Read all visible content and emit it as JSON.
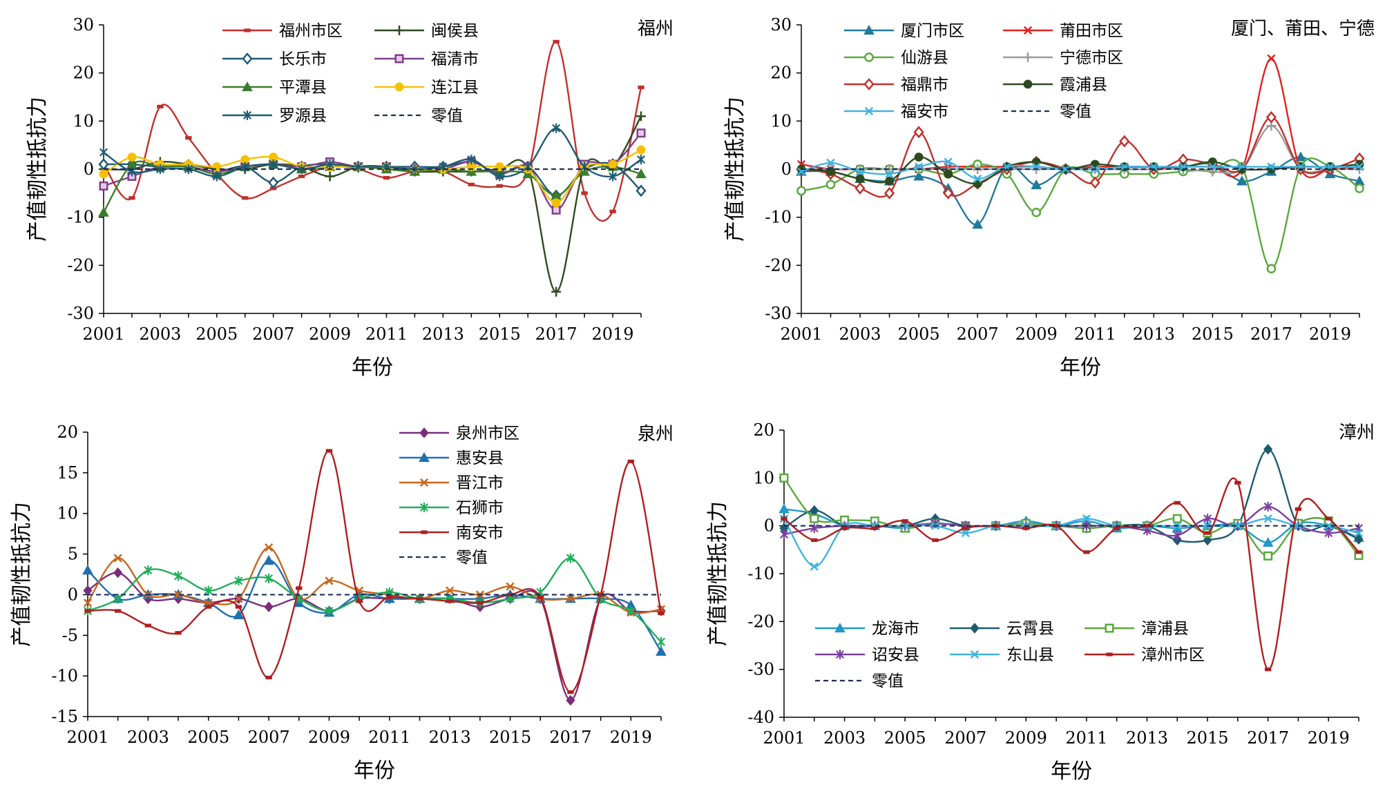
{
  "chart_data": [
    {
      "type": "line",
      "panel_label": "福州",
      "xlabel": "年份",
      "ylabel": "产值韧性抵抗力",
      "x": [
        2001,
        2002,
        2003,
        2004,
        2005,
        2006,
        2007,
        2008,
        2009,
        2010,
        2011,
        2012,
        2013,
        2014,
        2015,
        2016,
        2017,
        2018,
        2019,
        2020
      ],
      "x_ticks": [
        "2001",
        "2003",
        "2005",
        "2007",
        "2009",
        "2011",
        "2013",
        "2015",
        "2017",
        "2019"
      ],
      "ylim": [
        -30,
        30
      ],
      "y_ticks": [
        "30",
        "20",
        "10",
        "0",
        "-10",
        "-20",
        "-30"
      ],
      "legend_columns": 2,
      "series": [
        {
          "name": "福州市区",
          "color": "#c0302b",
          "marker": "dash",
          "values": [
            1.0,
            -6.0,
            13.0,
            6.5,
            -1.0,
            -6.0,
            -4.0,
            -1.5,
            0.5,
            0.0,
            -1.8,
            -0.5,
            -0.5,
            -3.2,
            -3.5,
            -0.5,
            26.5,
            -5.0,
            -8.8,
            17.0
          ]
        },
        {
          "name": "闽侯县",
          "color": "#2d4a1f",
          "marker": "plus",
          "values": [
            0.0,
            0.0,
            1.5,
            1.0,
            0.0,
            0.0,
            1.0,
            0.5,
            -1.5,
            0.5,
            0.5,
            -0.5,
            -0.5,
            -0.5,
            0.0,
            0.0,
            -25.5,
            0.5,
            0.5,
            11.0
          ]
        },
        {
          "name": "长乐市",
          "color": "#1f5a74",
          "marker": "diamond-open",
          "values": [
            1.0,
            1.0,
            0.5,
            0.5,
            -0.5,
            0.5,
            -2.8,
            0.5,
            1.0,
            0.5,
            0.5,
            0.5,
            0.5,
            1.5,
            -1.0,
            0.5,
            -5.5,
            0.0,
            1.0,
            -4.5
          ]
        },
        {
          "name": "福清市",
          "color": "#7f3f8a",
          "marker": "square-open",
          "values": [
            -3.5,
            -1.5,
            0.5,
            0.5,
            -0.5,
            0.5,
            1.0,
            0.5,
            1.5,
            0.5,
            0.5,
            0.0,
            0.0,
            1.5,
            -1.0,
            0.5,
            -8.5,
            1.0,
            1.0,
            7.5
          ]
        },
        {
          "name": "平潭县",
          "color": "#3c7d2c",
          "marker": "triangle",
          "values": [
            -9.0,
            1.0,
            0.5,
            0.5,
            -1.0,
            0.5,
            1.0,
            0.0,
            0.5,
            0.5,
            0.0,
            -0.5,
            0.0,
            -0.5,
            -0.5,
            -1.0,
            -5.5,
            -0.5,
            0.5,
            -1.0
          ]
        },
        {
          "name": "连江县",
          "color": "#f5c000",
          "marker": "circle",
          "values": [
            -1.0,
            2.5,
            1.0,
            1.0,
            0.5,
            2.0,
            2.5,
            0.5,
            0.5,
            0.5,
            0.5,
            0.0,
            0.0,
            0.5,
            0.5,
            0.0,
            -7.0,
            0.5,
            1.0,
            4.0
          ]
        },
        {
          "name": "罗源县",
          "color": "#1b5c73",
          "marker": "asterisk",
          "values": [
            3.5,
            -0.5,
            0.0,
            0.0,
            -1.5,
            0.5,
            1.0,
            0.0,
            1.0,
            0.5,
            0.5,
            0.0,
            0.5,
            2.0,
            -1.5,
            0.5,
            8.5,
            0.5,
            -1.5,
            2.0
          ]
        },
        {
          "name": "零值",
          "color": "#1a2d5a",
          "marker": "none",
          "dashed": true,
          "values": [
            0,
            0,
            0,
            0,
            0,
            0,
            0,
            0,
            0,
            0,
            0,
            0,
            0,
            0,
            0,
            0,
            0,
            0,
            0,
            0
          ]
        }
      ]
    },
    {
      "type": "line",
      "panel_label": "厦门、莆田、宁德",
      "xlabel": "年份",
      "ylabel": "产值韧性抵抗力",
      "x": [
        2001,
        2002,
        2003,
        2004,
        2005,
        2006,
        2007,
        2008,
        2009,
        2010,
        2011,
        2012,
        2013,
        2014,
        2015,
        2016,
        2017,
        2018,
        2019,
        2020
      ],
      "x_ticks": [
        "2001",
        "2003",
        "2005",
        "2007",
        "2009",
        "2011",
        "2013",
        "2015",
        "2017",
        "2019"
      ],
      "ylim": [
        -30,
        30
      ],
      "y_ticks": [
        "30",
        "20",
        "10",
        "0",
        "-10",
        "-20",
        "-30"
      ],
      "legend_columns": 2,
      "series": [
        {
          "name": "厦门市区",
          "color": "#1f7a9c",
          "marker": "triangle",
          "values": [
            -0.5,
            -0.5,
            -2.0,
            -2.5,
            -1.5,
            -4.0,
            -11.5,
            0.5,
            -3.3,
            0.0,
            0.0,
            0.0,
            0.0,
            0.5,
            1.0,
            -2.5,
            -0.5,
            2.5,
            -1.0,
            -2.5
          ]
        },
        {
          "name": "莆田市区",
          "color": "#e02020",
          "marker": "x",
          "values": [
            1.0,
            0.0,
            0.0,
            0.0,
            0.0,
            0.5,
            0.5,
            0.5,
            0.5,
            0.0,
            0.5,
            0.5,
            0.5,
            0.5,
            0.5,
            0.0,
            23.0,
            0.0,
            0.0,
            0.5
          ]
        },
        {
          "name": "仙游县",
          "color": "#5aa83c",
          "marker": "circle-open",
          "values": [
            -4.5,
            -3.2,
            0.0,
            0.0,
            0.0,
            -1.0,
            1.0,
            -1.0,
            -9.0,
            0.0,
            -1.0,
            -1.0,
            -1.0,
            -0.5,
            0.0,
            0.5,
            -20.7,
            0.5,
            0.5,
            -4.0
          ]
        },
        {
          "name": "宁德市区",
          "color": "#9a9a9a",
          "marker": "plus",
          "values": [
            0.0,
            0.0,
            0.0,
            0.0,
            0.0,
            0.0,
            0.0,
            0.0,
            0.0,
            0.0,
            0.0,
            0.0,
            0.0,
            0.0,
            -0.5,
            0.0,
            9.0,
            0.0,
            0.0,
            0.0
          ]
        },
        {
          "name": "福鼎市",
          "color": "#c0302b",
          "marker": "diamond-open",
          "values": [
            0.0,
            -1.0,
            -4.0,
            -5.0,
            7.7,
            -5.0,
            -3.0,
            0.0,
            1.5,
            0.0,
            -2.8,
            5.8,
            0.0,
            2.0,
            1.0,
            0.0,
            10.8,
            0.0,
            0.0,
            2.2
          ]
        },
        {
          "name": "霞浦县",
          "color": "#2d4a1f",
          "marker": "circle",
          "values": [
            0.0,
            -0.5,
            -2.0,
            -2.5,
            2.5,
            -1.0,
            -3.0,
            0.5,
            1.5,
            0.0,
            1.0,
            0.5,
            0.5,
            0.5,
            1.5,
            0.0,
            0.0,
            0.5,
            0.5,
            1.0
          ]
        },
        {
          "name": "福安市",
          "color": "#3fb3e0",
          "marker": "x",
          "values": [
            -0.5,
            1.3,
            -0.5,
            -1.0,
            0.5,
            1.5,
            -2.0,
            0.5,
            0.5,
            0.0,
            0.0,
            0.5,
            0.5,
            0.5,
            0.5,
            0.5,
            0.5,
            0.5,
            0.5,
            0.5
          ]
        },
        {
          "name": "零值",
          "color": "#1a2d5a",
          "marker": "none",
          "dashed": true,
          "values": [
            0,
            0,
            0,
            0,
            0,
            0,
            0,
            0,
            0,
            0,
            0,
            0,
            0,
            0,
            0,
            0,
            0,
            0,
            0,
            0
          ]
        }
      ]
    },
    {
      "type": "line",
      "panel_label": "泉州",
      "xlabel": "年份",
      "ylabel": "产值韧性抵抗力",
      "x": [
        2001,
        2002,
        2003,
        2004,
        2005,
        2006,
        2007,
        2008,
        2009,
        2010,
        2011,
        2012,
        2013,
        2014,
        2015,
        2016,
        2017,
        2018,
        2019,
        2020
      ],
      "x_ticks": [
        "2001",
        "2003",
        "2005",
        "2007",
        "2009",
        "2011",
        "2013",
        "2015",
        "2017",
        "2019"
      ],
      "ylim": [
        -15,
        20
      ],
      "y_ticks": [
        "20",
        "15",
        "10",
        "5",
        "0",
        "-5",
        "-10",
        "-15"
      ],
      "legend_columns": 1,
      "series": [
        {
          "name": "泉州市区",
          "color": "#7a2d7a",
          "marker": "diamond",
          "values": [
            0.5,
            2.7,
            -0.5,
            -0.5,
            -1.0,
            -0.5,
            -1.5,
            -0.5,
            -2.0,
            -0.5,
            -0.5,
            -0.5,
            -0.5,
            -1.5,
            -0.5,
            -0.5,
            -13.0,
            -0.5,
            -2.0,
            -2.0
          ]
        },
        {
          "name": "惠安县",
          "color": "#1f6fb0",
          "marker": "triangle",
          "values": [
            3.0,
            -0.5,
            0.0,
            0.0,
            -1.0,
            -2.5,
            4.2,
            -1.0,
            -2.2,
            0.0,
            -0.5,
            -0.5,
            -0.5,
            -0.5,
            0.0,
            -0.5,
            -0.5,
            -0.5,
            -1.3,
            -7.0
          ]
        },
        {
          "name": "晋江市",
          "color": "#c8661e",
          "marker": "x",
          "values": [
            -1.0,
            4.5,
            0.0,
            0.0,
            -1.0,
            -0.5,
            5.8,
            -0.5,
            1.7,
            0.5,
            0.0,
            -0.5,
            0.5,
            0.0,
            1.0,
            -0.5,
            -0.5,
            0.0,
            -2.2,
            -1.8
          ]
        },
        {
          "name": "石狮市",
          "color": "#1fae5a",
          "marker": "asterisk",
          "values": [
            -2.0,
            -0.5,
            3.0,
            2.3,
            0.5,
            1.7,
            2.0,
            -0.5,
            -2.0,
            -0.5,
            0.3,
            -0.5,
            -0.5,
            -1.0,
            -0.5,
            0.3,
            4.5,
            -0.5,
            -2.0,
            -5.8
          ]
        },
        {
          "name": "南安市",
          "color": "#b01e1e",
          "marker": "dash",
          "values": [
            -2.0,
            -2.0,
            -3.8,
            -4.7,
            -1.5,
            -1.5,
            -10.2,
            0.8,
            17.7,
            -0.8,
            -0.3,
            -0.5,
            -0.8,
            -1.0,
            0.0,
            -0.3,
            -12.0,
            0.0,
            16.4,
            -2.3
          ]
        },
        {
          "name": "零值",
          "color": "#1a2d5a",
          "marker": "none",
          "dashed": true,
          "values": [
            0,
            0,
            0,
            0,
            0,
            0,
            0,
            0,
            0,
            0,
            0,
            0,
            0,
            0,
            0,
            0,
            0,
            0,
            0,
            0
          ]
        }
      ]
    },
    {
      "type": "line",
      "panel_label": "漳州",
      "xlabel": "年份",
      "ylabel": "产值韧性抵抗力",
      "x": [
        2001,
        2002,
        2003,
        2004,
        2005,
        2006,
        2007,
        2008,
        2009,
        2010,
        2011,
        2012,
        2013,
        2014,
        2015,
        2016,
        2017,
        2018,
        2019,
        2020
      ],
      "x_ticks": [
        "2001",
        "2003",
        "2005",
        "2007",
        "2009",
        "2011",
        "2013",
        "2015",
        "2017",
        "2019"
      ],
      "ylim": [
        -40,
        20
      ],
      "y_ticks": [
        "20",
        "10",
        "0",
        "-10",
        "-20",
        "-30",
        "-40"
      ],
      "legend_columns": 3,
      "series": [
        {
          "name": "龙海市",
          "color": "#1f9ac8",
          "marker": "triangle",
          "values": [
            3.5,
            2.5,
            0.0,
            0.0,
            -0.5,
            0.5,
            0.0,
            0.0,
            1.0,
            0.0,
            1.0,
            -0.5,
            0.0,
            -0.5,
            0.0,
            0.0,
            -3.5,
            0.5,
            0.0,
            -2.5
          ]
        },
        {
          "name": "云霄县",
          "color": "#1d5a6e",
          "marker": "diamond",
          "values": [
            -0.5,
            3.2,
            0.0,
            0.0,
            0.0,
            1.5,
            0.0,
            0.0,
            0.5,
            0.0,
            -0.5,
            0.0,
            0.0,
            -3.0,
            -3.0,
            0.0,
            16.0,
            0.0,
            0.0,
            -2.8
          ]
        },
        {
          "name": "漳浦县",
          "color": "#5aa83c",
          "marker": "square-open",
          "values": [
            10.0,
            1.5,
            1.2,
            1.0,
            -0.5,
            0.5,
            0.0,
            0.0,
            0.5,
            0.0,
            -0.5,
            0.0,
            0.0,
            1.5,
            -1.5,
            0.5,
            -6.3,
            0.5,
            1.0,
            -6.2
          ]
        },
        {
          "name": "诏安县",
          "color": "#7a3fa0",
          "marker": "asterisk",
          "values": [
            -1.8,
            -0.5,
            0.0,
            0.0,
            0.0,
            0.5,
            0.0,
            0.0,
            0.0,
            0.0,
            0.0,
            0.0,
            -1.0,
            -2.0,
            1.5,
            0.0,
            4.0,
            0.0,
            -1.5,
            -0.5
          ]
        },
        {
          "name": "东山县",
          "color": "#3fb3e0",
          "marker": "x",
          "values": [
            1.5,
            -8.5,
            0.0,
            0.0,
            0.0,
            0.0,
            -1.5,
            0.0,
            0.0,
            0.0,
            1.5,
            0.0,
            0.0,
            0.0,
            0.0,
            0.0,
            1.5,
            0.0,
            0.0,
            -1.5
          ]
        },
        {
          "name": "漳州市区",
          "color": "#b01e1e",
          "marker": "dash",
          "values": [
            1.5,
            -3.0,
            -0.5,
            -0.5,
            1.0,
            -3.0,
            -0.5,
            0.0,
            -0.5,
            0.0,
            -5.5,
            -0.5,
            0.0,
            4.8,
            -1.5,
            9.0,
            -30.0,
            3.5,
            1.5,
            -5.5
          ]
        },
        {
          "name": "零值",
          "color": "#1a2d5a",
          "marker": "none",
          "dashed": true,
          "values": [
            0,
            0,
            0,
            0,
            0,
            0,
            0,
            0,
            0,
            0,
            0,
            0,
            0,
            0,
            0,
            0,
            0,
            0,
            0,
            0
          ]
        }
      ]
    }
  ]
}
